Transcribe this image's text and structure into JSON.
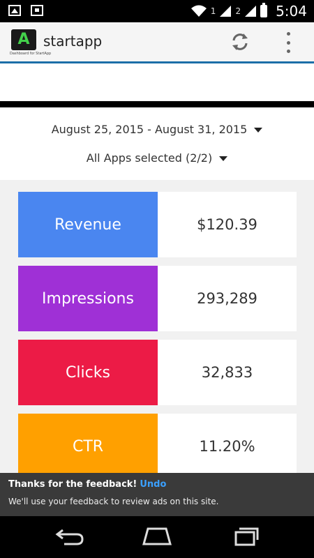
{
  "status_bar": {
    "time": "5:04",
    "sim1": "1",
    "sim2": "2"
  },
  "app_bar": {
    "title": "startapp",
    "logo_caption": "Dashboard for StartApp"
  },
  "filters": {
    "date_range": "August 25, 2015 - August 31, 2015",
    "apps": "All Apps selected (2/2)"
  },
  "metrics": [
    {
      "label": "Revenue",
      "value": "$120.39",
      "color": "#4a86f0"
    },
    {
      "label": "Impressions",
      "value": "293,289",
      "color": "#9f30d6"
    },
    {
      "label": "Clicks",
      "value": "32,833",
      "color": "#ec1b46"
    },
    {
      "label": "CTR",
      "value": "11.20%",
      "color": "#ffa000"
    }
  ],
  "toast": {
    "title": "Thanks for the feedback!",
    "action": "Undo",
    "message": "We'll use your feedback to review ads on this site."
  },
  "icons": [
    "image-icon",
    "screenshot-icon",
    "wifi-icon",
    "signal-icon",
    "battery-icon",
    "refresh-icon",
    "overflow-menu-icon",
    "back-icon",
    "home-icon",
    "recents-icon"
  ]
}
